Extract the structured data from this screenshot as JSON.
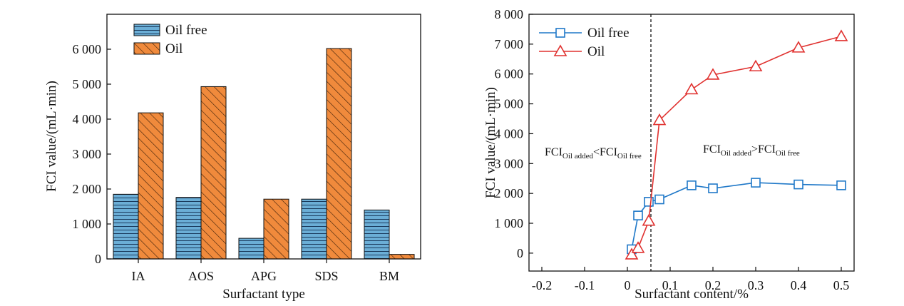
{
  "chart_data": [
    {
      "type": "bar",
      "xlabel": "Surfactant type",
      "ylabel": "FCI value/(mL·min)",
      "categories": [
        "IA",
        "AOS",
        "APG",
        "SDS",
        "BM"
      ],
      "series": [
        {
          "name": "Oil free",
          "values": [
            1850,
            1760,
            590,
            1710,
            1400
          ],
          "color": "#6baed6",
          "pattern": "horizontal-lines"
        },
        {
          "name": "Oil",
          "values": [
            4180,
            4930,
            1710,
            6020,
            130
          ],
          "color": "#f08a3c",
          "pattern": "diagonal-lines"
        }
      ],
      "ylim": [
        0,
        7000
      ],
      "yticks": [
        0,
        1000,
        2000,
        3000,
        4000,
        5000,
        6000
      ],
      "ytick_labels": [
        "0",
        "1 000",
        "2 000",
        "3 000",
        "4 000",
        "5 000",
        "6 000"
      ],
      "legend_position": "top-left",
      "grid": false
    },
    {
      "type": "line",
      "xlabel": "Surfactant content/%",
      "ylabel": "FCI value/(mL·min)",
      "xlim": [
        -0.23,
        0.53
      ],
      "ylim": [
        -600,
        8000
      ],
      "xticks": [
        -0.2,
        -0.1,
        0,
        0.1,
        0.2,
        0.3,
        0.4,
        0.5
      ],
      "xtick_labels": [
        "-0.2",
        "-0.1",
        "0",
        "0.1",
        "0.2",
        "0.3",
        "0.4",
        "0.5"
      ],
      "yticks": [
        0,
        1000,
        2000,
        3000,
        4000,
        5000,
        6000,
        7000,
        8000
      ],
      "ytick_labels": [
        "0",
        "1 000",
        "2 000",
        "3 000",
        "4 000",
        "5 000",
        "6 000",
        "7 000",
        "8 000"
      ],
      "series": [
        {
          "name": "Oil free",
          "color": "#1f78c8",
          "marker": "square",
          "x": [
            0.01,
            0.025,
            0.05,
            0.075,
            0.15,
            0.2,
            0.3,
            0.4,
            0.5
          ],
          "y": [
            130,
            1260,
            1720,
            1800,
            2270,
            2170,
            2360,
            2300,
            2270
          ]
        },
        {
          "name": "Oil",
          "color": "#e0312f",
          "marker": "triangle",
          "x": [
            0.01,
            0.025,
            0.05,
            0.075,
            0.15,
            0.2,
            0.3,
            0.4,
            0.5
          ],
          "y": [
            -50,
            170,
            1080,
            4450,
            5480,
            5970,
            6250,
            6880,
            7260
          ]
        }
      ],
      "vline_x": 0.055,
      "annotations": [
        {
          "main1": "FCI",
          "sub1": "Oil added",
          "op": "<",
          "main2": "FCI",
          "sub2": "Oil free"
        },
        {
          "main1": "FCI",
          "sub1": "Oil added",
          "op": ">",
          "main2": "FCI",
          "sub2": "Oil free"
        }
      ],
      "legend_position": "top-left",
      "grid": false
    }
  ]
}
